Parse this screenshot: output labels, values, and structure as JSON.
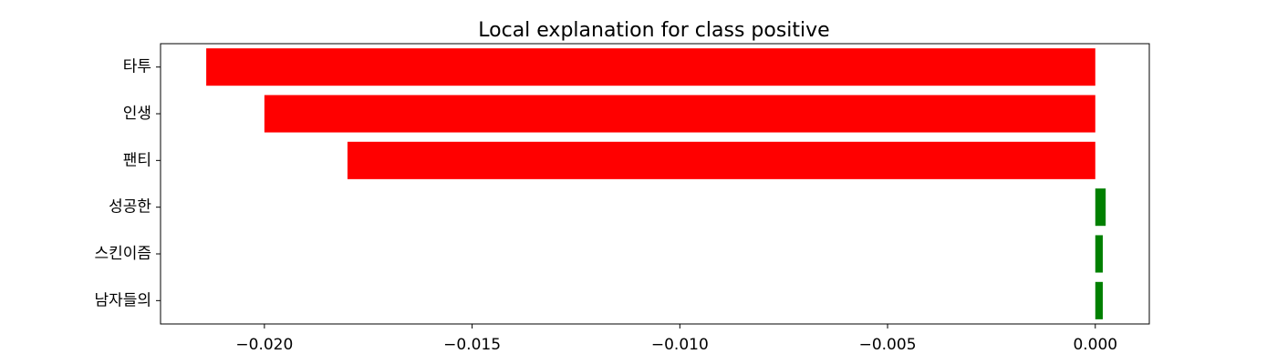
{
  "chart_data": {
    "type": "bar",
    "orientation": "horizontal",
    "title": "Local explanation for class positive",
    "xlabel": "",
    "ylabel": "",
    "categories": [
      "타투",
      "인생",
      "팬티",
      "성공한",
      "스킨이즘",
      "남자들의"
    ],
    "values": [
      -0.0214,
      -0.02,
      -0.018,
      0.00025,
      0.00018,
      0.00018
    ],
    "xlim": [
      -0.0225,
      0.0013
    ],
    "xticks": [
      -0.02,
      -0.015,
      -0.01,
      -0.005,
      0.0
    ],
    "xtick_labels": [
      "−0.020",
      "−0.015",
      "−0.010",
      "−0.005",
      "0.000"
    ],
    "colors": {
      "negative": "#ff0000",
      "positive": "#008000"
    },
    "grid": false,
    "legend": "none"
  }
}
